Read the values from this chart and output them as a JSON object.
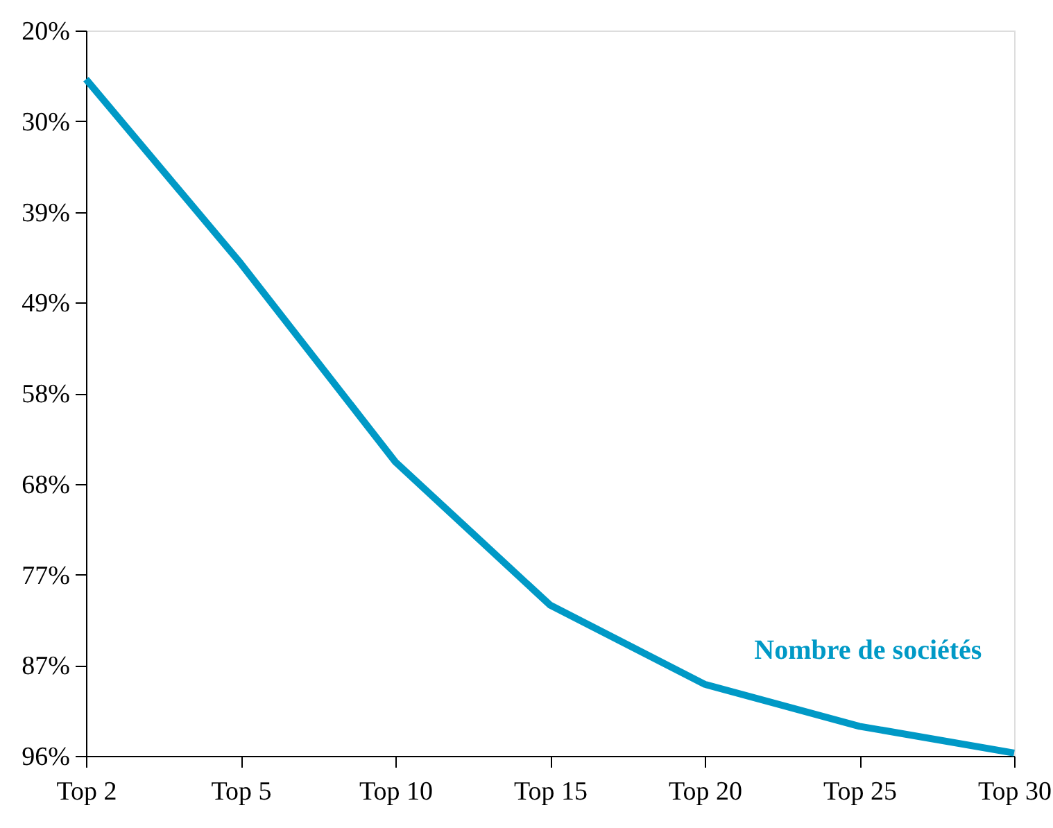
{
  "chart_data": {
    "type": "line",
    "categories": [
      "Top 2",
      "Top 5",
      "Top 10",
      "Top 15",
      "Top 20",
      "Top 25",
      "Top 30"
    ],
    "series": [
      {
        "name": "Nombre de sociétés",
        "color": "#0099c6",
        "values": [
          25.1,
          44.4,
          65.2,
          80.2,
          88.5,
          92.9,
          95.7
        ]
      }
    ],
    "ylim": [
      96,
      20
    ],
    "yticks": [
      {
        "value": 20,
        "label": "20%"
      },
      {
        "value": 29.5,
        "label": "30%"
      },
      {
        "value": 39,
        "label": "39%"
      },
      {
        "value": 48.5,
        "label": "49%"
      },
      {
        "value": 58,
        "label": "58%"
      },
      {
        "value": 67.5,
        "label": "68%"
      },
      {
        "value": 77,
        "label": "77%"
      },
      {
        "value": 86.5,
        "label": "87%"
      },
      {
        "value": 96,
        "label": "96%"
      }
    ],
    "grid": false,
    "legend": false,
    "marker": "none",
    "line_style": "solid"
  }
}
